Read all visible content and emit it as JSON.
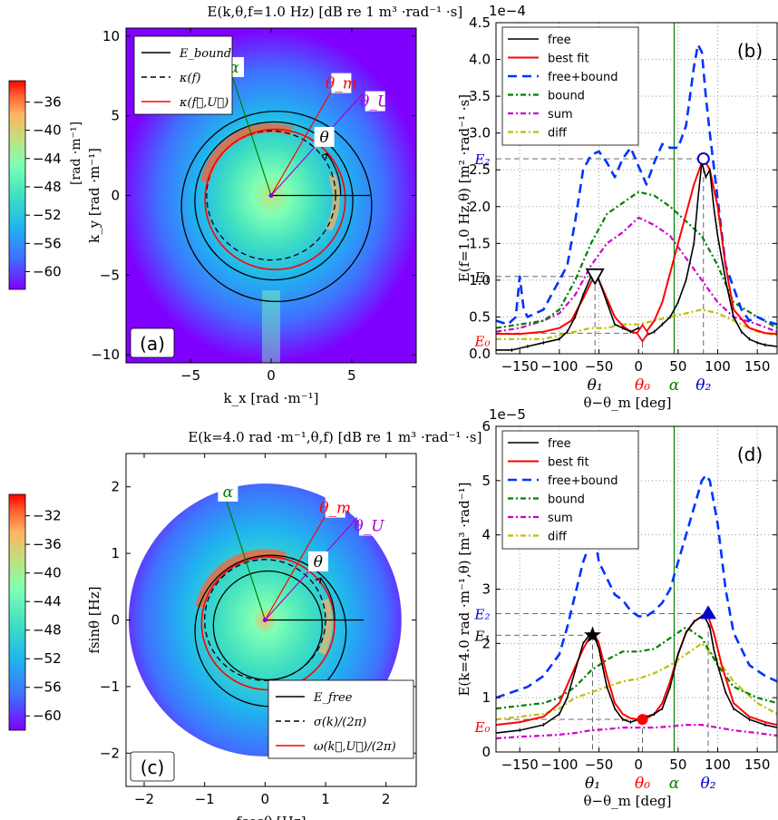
{
  "colors": {
    "free": "#000000",
    "best_fit": "#ff0000",
    "free_bound": "#0033ff",
    "bound": "#008000",
    "sum": "#cc00cc",
    "diff": "#bfbf00",
    "alpha": "#008000",
    "theta_m": "#ff0000",
    "theta_u": "#aa00cc",
    "E2": "#0000cc",
    "E0": "#ff0000"
  },
  "colormap": [
    "#7f00ff",
    "#4070ff",
    "#20b4ef",
    "#40e0c0",
    "#80ffb4",
    "#c0e080",
    "#ffb460",
    "#ff6030",
    "#ff0000"
  ],
  "chart_data": [
    {
      "id": "a",
      "type": "heatmap",
      "panel_label": "(a)",
      "title": "E(k,θ,f=1.0 Hz)  [dB re 1 m³ ·rad⁻¹ ·s]",
      "xlabel": "k_x  [rad ·m⁻¹]",
      "ylabel": "k_y  [rad ·m⁻¹]",
      "xlim": [
        -9,
        9
      ],
      "ylim": [
        -10.5,
        10.5
      ],
      "xticks": [
        "−5",
        "0",
        "5"
      ],
      "xtick_values": [
        -5,
        0,
        5
      ],
      "yticks": [
        "−10",
        "−5",
        "0",
        "5",
        "10"
      ],
      "ytick_values": [
        -10,
        -5,
        0,
        5,
        10
      ],
      "colorbar": {
        "ticks": [
          "−36",
          "−40",
          "−44",
          "−48",
          "−52",
          "−56",
          "−60"
        ],
        "tick_values": [
          -36,
          -40,
          -44,
          -48,
          -52,
          -56,
          -60
        ],
        "range": [
          -62.5,
          -33
        ],
        "label": "[rad ·m⁻¹]"
      },
      "legend": [
        "E_bound",
        "κ(f)",
        "κ(f⃗,U⃗)"
      ],
      "angle_labels": [
        "α",
        "θ_m",
        "θ_U",
        "θ"
      ],
      "angles_deg": {
        "alpha": 108,
        "theta_m": 60,
        "theta_u": 48
      },
      "circles": {
        "kappa_f": 4.0,
        "kappa_fU": 4.4,
        "kappa_fU_center": [
          0.3,
          -0.3
        ],
        "E_bound": [
          4.6,
          5.6
        ]
      }
    },
    {
      "id": "b",
      "type": "line",
      "panel_label": "(b)",
      "y_exponent": "1e−4",
      "xlabel": "θ−θ_m [deg]",
      "ylabel": "E(f=1.0 Hz,θ)  [m² ·rad⁻¹ ·s]",
      "xlim": [
        -180,
        175
      ],
      "ylim": [
        0,
        4.5
      ],
      "xticks": [
        "−150",
        "−100",
        "−50",
        "0",
        "50",
        "100",
        "150"
      ],
      "xtick_values": [
        -150,
        -100,
        -50,
        0,
        50,
        100,
        150
      ],
      "yticks": [
        "0.0",
        "0.5",
        "1.0",
        "1.5",
        "2.0",
        "2.5",
        "3.0",
        "3.5",
        "4.0",
        "4.5"
      ],
      "ytick_values": [
        0,
        0.5,
        1,
        1.5,
        2,
        2.5,
        3,
        3.5,
        4,
        4.5
      ],
      "legend": [
        "free",
        "best fit",
        "free+bound",
        "bound",
        "sum",
        "diff"
      ],
      "angle_labels": [
        "θ₁",
        "θ₀",
        "α",
        "θ₂"
      ],
      "angle_positions": [
        -55,
        5,
        45,
        82
      ],
      "level_labels": [
        "E₂",
        "E₁",
        "E₀"
      ],
      "level_values": [
        2.65,
        1.05,
        0.28
      ],
      "series": [
        {
          "name": "free",
          "x": [
            -180,
            -160,
            -140,
            -120,
            -100,
            -90,
            -80,
            -70,
            -60,
            -55,
            -50,
            -40,
            -30,
            -20,
            -10,
            0,
            10,
            20,
            30,
            40,
            50,
            60,
            70,
            75,
            80,
            85,
            90,
            95,
            100,
            110,
            120,
            130,
            140,
            150,
            160,
            175
          ],
          "y": [
            0.05,
            0.05,
            0.1,
            0.15,
            0.2,
            0.3,
            0.5,
            0.8,
            1.05,
            1.1,
            1.0,
            0.7,
            0.4,
            0.35,
            0.3,
            0.35,
            0.25,
            0.3,
            0.4,
            0.5,
            0.7,
            1.0,
            1.5,
            2.1,
            2.6,
            2.4,
            2.5,
            2.0,
            1.6,
            1.0,
            0.5,
            0.3,
            0.2,
            0.15,
            0.12,
            0.1
          ]
        },
        {
          "name": "best fit",
          "x": [
            -180,
            -150,
            -120,
            -100,
            -85,
            -70,
            -60,
            -55,
            -50,
            -40,
            -30,
            -20,
            -10,
            0,
            5,
            10,
            20,
            30,
            40,
            50,
            60,
            70,
            80,
            85,
            90,
            100,
            110,
            120,
            140,
            160,
            175
          ],
          "y": [
            0.27,
            0.27,
            0.3,
            0.35,
            0.45,
            0.75,
            0.97,
            1.05,
            1.0,
            0.75,
            0.5,
            0.38,
            0.3,
            0.28,
            0.27,
            0.3,
            0.45,
            0.7,
            1.1,
            1.5,
            1.9,
            2.3,
            2.6,
            2.6,
            2.5,
            2.0,
            1.2,
            0.6,
            0.35,
            0.28,
            0.27
          ]
        },
        {
          "name": "free+bound",
          "x": [
            -180,
            -165,
            -155,
            -150,
            -145,
            -140,
            -120,
            -110,
            -100,
            -90,
            -80,
            -70,
            -60,
            -50,
            -40,
            -30,
            -20,
            -10,
            0,
            10,
            20,
            30,
            40,
            50,
            60,
            70,
            75,
            80,
            85,
            90,
            100,
            110,
            120,
            130,
            140,
            150,
            160,
            175
          ],
          "y": [
            0.45,
            0.4,
            0.5,
            1.05,
            0.6,
            0.5,
            0.6,
            0.8,
            1.0,
            1.2,
            1.8,
            2.5,
            2.7,
            2.75,
            2.6,
            2.4,
            2.65,
            2.8,
            2.55,
            2.3,
            2.6,
            2.85,
            2.8,
            2.8,
            3.1,
            3.9,
            4.2,
            4.1,
            3.5,
            3.0,
            2.1,
            1.2,
            0.9,
            0.6,
            0.45,
            0.5,
            0.45,
            0.4
          ]
        },
        {
          "name": "bound",
          "x": [
            -180,
            -150,
            -120,
            -100,
            -80,
            -60,
            -40,
            -20,
            0,
            20,
            40,
            60,
            80,
            100,
            120,
            150,
            175
          ],
          "y": [
            0.35,
            0.4,
            0.45,
            0.6,
            1.0,
            1.5,
            1.9,
            2.05,
            2.2,
            2.15,
            2.0,
            1.8,
            1.6,
            1.2,
            0.7,
            0.5,
            0.35
          ]
        },
        {
          "name": "sum",
          "x": [
            -180,
            -150,
            -120,
            -100,
            -80,
            -60,
            -40,
            -20,
            0,
            20,
            40,
            60,
            80,
            100,
            120,
            150,
            175
          ],
          "y": [
            0.3,
            0.35,
            0.45,
            0.55,
            0.8,
            1.2,
            1.5,
            1.65,
            1.85,
            1.75,
            1.6,
            1.3,
            1.0,
            0.7,
            0.5,
            0.4,
            0.3
          ]
        },
        {
          "name": "diff",
          "x": [
            -180,
            -150,
            -120,
            -100,
            -80,
            -60,
            -40,
            -20,
            0,
            20,
            40,
            60,
            80,
            100,
            120,
            150,
            175
          ],
          "y": [
            0.2,
            0.2,
            0.2,
            0.25,
            0.3,
            0.35,
            0.35,
            0.4,
            0.4,
            0.45,
            0.5,
            0.55,
            0.6,
            0.55,
            0.45,
            0.3,
            0.25
          ]
        }
      ]
    },
    {
      "id": "c",
      "type": "heatmap",
      "panel_label": "(c)",
      "title": "E(k=4.0 rad ·m⁻¹,θ,f)  [dB re 1 m³ ·rad⁻¹ ·s]",
      "xlabel": "fcosθ  [Hz]",
      "ylabel": "fsinθ  [Hz]",
      "xlim": [
        -2.3,
        2.5
      ],
      "ylim": [
        -2.5,
        2.5
      ],
      "xticks": [
        "−2",
        "−1",
        "0",
        "1",
        "2"
      ],
      "xtick_values": [
        -2,
        -1,
        0,
        1,
        2
      ],
      "yticks": [
        "−2",
        "−1",
        "0",
        "1",
        "2"
      ],
      "ytick_values": [
        -2,
        -1,
        0,
        1,
        2
      ],
      "colorbar": {
        "ticks": [
          "−32",
          "−36",
          "−40",
          "−44",
          "−48",
          "−52",
          "−56",
          "−60"
        ],
        "tick_values": [
          -32,
          -36,
          -40,
          -44,
          -48,
          -52,
          -56,
          -60
        ],
        "range": [
          -62,
          -29
        ]
      },
      "legend": [
        "E_free",
        "σ(k)/(2π)",
        "ω(k⃗,U⃗)/(2π)"
      ],
      "angle_labels": [
        "α",
        "θ_m",
        "θ_U",
        "θ"
      ],
      "angles_deg": {
        "alpha": 108,
        "theta_m": 60,
        "theta_u": 48
      },
      "circles": {
        "sigma": 1.0,
        "omega": 1.1,
        "omega_center": [
          0.05,
          -0.05
        ],
        "E_free": [
          0.85,
          1.25
        ]
      }
    },
    {
      "id": "d",
      "type": "line",
      "panel_label": "(d)",
      "y_exponent": "1e−5",
      "xlabel": "θ−θ_m [deg]",
      "ylabel": "E(k=4.0 rad ·m⁻¹,θ)  [m³ ·rad⁻¹]",
      "xlim": [
        -180,
        175
      ],
      "ylim": [
        0,
        6
      ],
      "xticks": [
        "−150",
        "−100",
        "−50",
        "0",
        "50",
        "100",
        "150"
      ],
      "xtick_values": [
        -150,
        -100,
        -50,
        0,
        50,
        100,
        150
      ],
      "yticks": [
        "0",
        "1",
        "2",
        "3",
        "4",
        "5",
        "6"
      ],
      "ytick_values": [
        0,
        1,
        2,
        3,
        4,
        5,
        6
      ],
      "legend": [
        "free",
        "best fit",
        "free+bound",
        "bound",
        "sum",
        "diff"
      ],
      "angle_labels": [
        "θ₁",
        "θ₀",
        "α",
        "θ₂"
      ],
      "angle_positions": [
        -58,
        5,
        45,
        88
      ],
      "level_labels": [
        "E₂",
        "E₁",
        "E₀"
      ],
      "level_values": [
        2.55,
        2.15,
        0.6
      ],
      "series": [
        {
          "name": "free",
          "x": [
            -180,
            -150,
            -120,
            -100,
            -90,
            -80,
            -70,
            -60,
            -55,
            -50,
            -40,
            -30,
            -20,
            -10,
            0,
            10,
            20,
            30,
            40,
            50,
            60,
            70,
            80,
            85,
            90,
            95,
            100,
            110,
            120,
            140,
            160,
            175
          ],
          "y": [
            0.35,
            0.4,
            0.5,
            0.7,
            1.0,
            1.5,
            2.0,
            2.2,
            2.1,
            1.9,
            1.2,
            0.8,
            0.6,
            0.55,
            0.6,
            0.65,
            0.7,
            0.8,
            1.2,
            1.8,
            2.2,
            2.4,
            2.5,
            2.45,
            2.3,
            1.9,
            1.6,
            1.1,
            0.8,
            0.6,
            0.5,
            0.45
          ]
        },
        {
          "name": "best fit",
          "x": [
            -180,
            -150,
            -120,
            -100,
            -85,
            -70,
            -60,
            -55,
            -50,
            -40,
            -30,
            -20,
            -10,
            0,
            5,
            10,
            20,
            30,
            40,
            50,
            60,
            70,
            80,
            88,
            95,
            105,
            120,
            140,
            160,
            175
          ],
          "y": [
            0.5,
            0.55,
            0.65,
            0.9,
            1.4,
            1.9,
            2.15,
            2.15,
            2.0,
            1.4,
            0.9,
            0.7,
            0.62,
            0.6,
            0.6,
            0.62,
            0.7,
            0.9,
            1.3,
            1.8,
            2.2,
            2.4,
            2.5,
            2.5,
            2.2,
            1.6,
            0.9,
            0.65,
            0.55,
            0.5
          ]
        },
        {
          "name": "free+bound",
          "x": [
            -180,
            -160,
            -140,
            -120,
            -100,
            -90,
            -80,
            -70,
            -60,
            -55,
            -50,
            -40,
            -30,
            -20,
            -10,
            0,
            10,
            20,
            30,
            40,
            50,
            60,
            70,
            80,
            85,
            90,
            100,
            110,
            120,
            140,
            160,
            175
          ],
          "y": [
            1.0,
            1.1,
            1.2,
            1.4,
            1.8,
            2.3,
            2.9,
            3.5,
            3.9,
            3.95,
            3.5,
            3.2,
            2.9,
            2.8,
            2.6,
            2.5,
            2.5,
            2.6,
            2.75,
            3.0,
            3.5,
            4.0,
            4.5,
            5.0,
            5.1,
            5.0,
            4.2,
            3.0,
            2.2,
            1.6,
            1.4,
            1.3
          ]
        },
        {
          "name": "bound",
          "x": [
            -180,
            -150,
            -120,
            -100,
            -80,
            -60,
            -40,
            -20,
            0,
            20,
            40,
            60,
            80,
            100,
            120,
            150,
            175
          ],
          "y": [
            0.8,
            0.85,
            0.9,
            1.0,
            1.2,
            1.5,
            1.7,
            1.85,
            1.85,
            1.9,
            2.1,
            2.3,
            2.1,
            1.6,
            1.2,
            1.0,
            0.9
          ]
        },
        {
          "name": "sum",
          "x": [
            -180,
            -150,
            -120,
            -100,
            -80,
            -60,
            -40,
            -20,
            0,
            20,
            40,
            60,
            80,
            100,
            120,
            150,
            175
          ],
          "y": [
            0.25,
            0.28,
            0.3,
            0.32,
            0.35,
            0.4,
            0.42,
            0.45,
            0.45,
            0.45,
            0.47,
            0.5,
            0.5,
            0.45,
            0.4,
            0.35,
            0.3
          ]
        },
        {
          "name": "diff",
          "x": [
            -180,
            -150,
            -120,
            -100,
            -80,
            -60,
            -40,
            -20,
            0,
            20,
            40,
            60,
            80,
            100,
            120,
            150,
            175
          ],
          "y": [
            0.6,
            0.65,
            0.7,
            0.8,
            1.0,
            1.1,
            1.2,
            1.3,
            1.35,
            1.45,
            1.6,
            1.8,
            2.0,
            1.7,
            1.3,
            0.9,
            0.7
          ]
        }
      ]
    }
  ]
}
